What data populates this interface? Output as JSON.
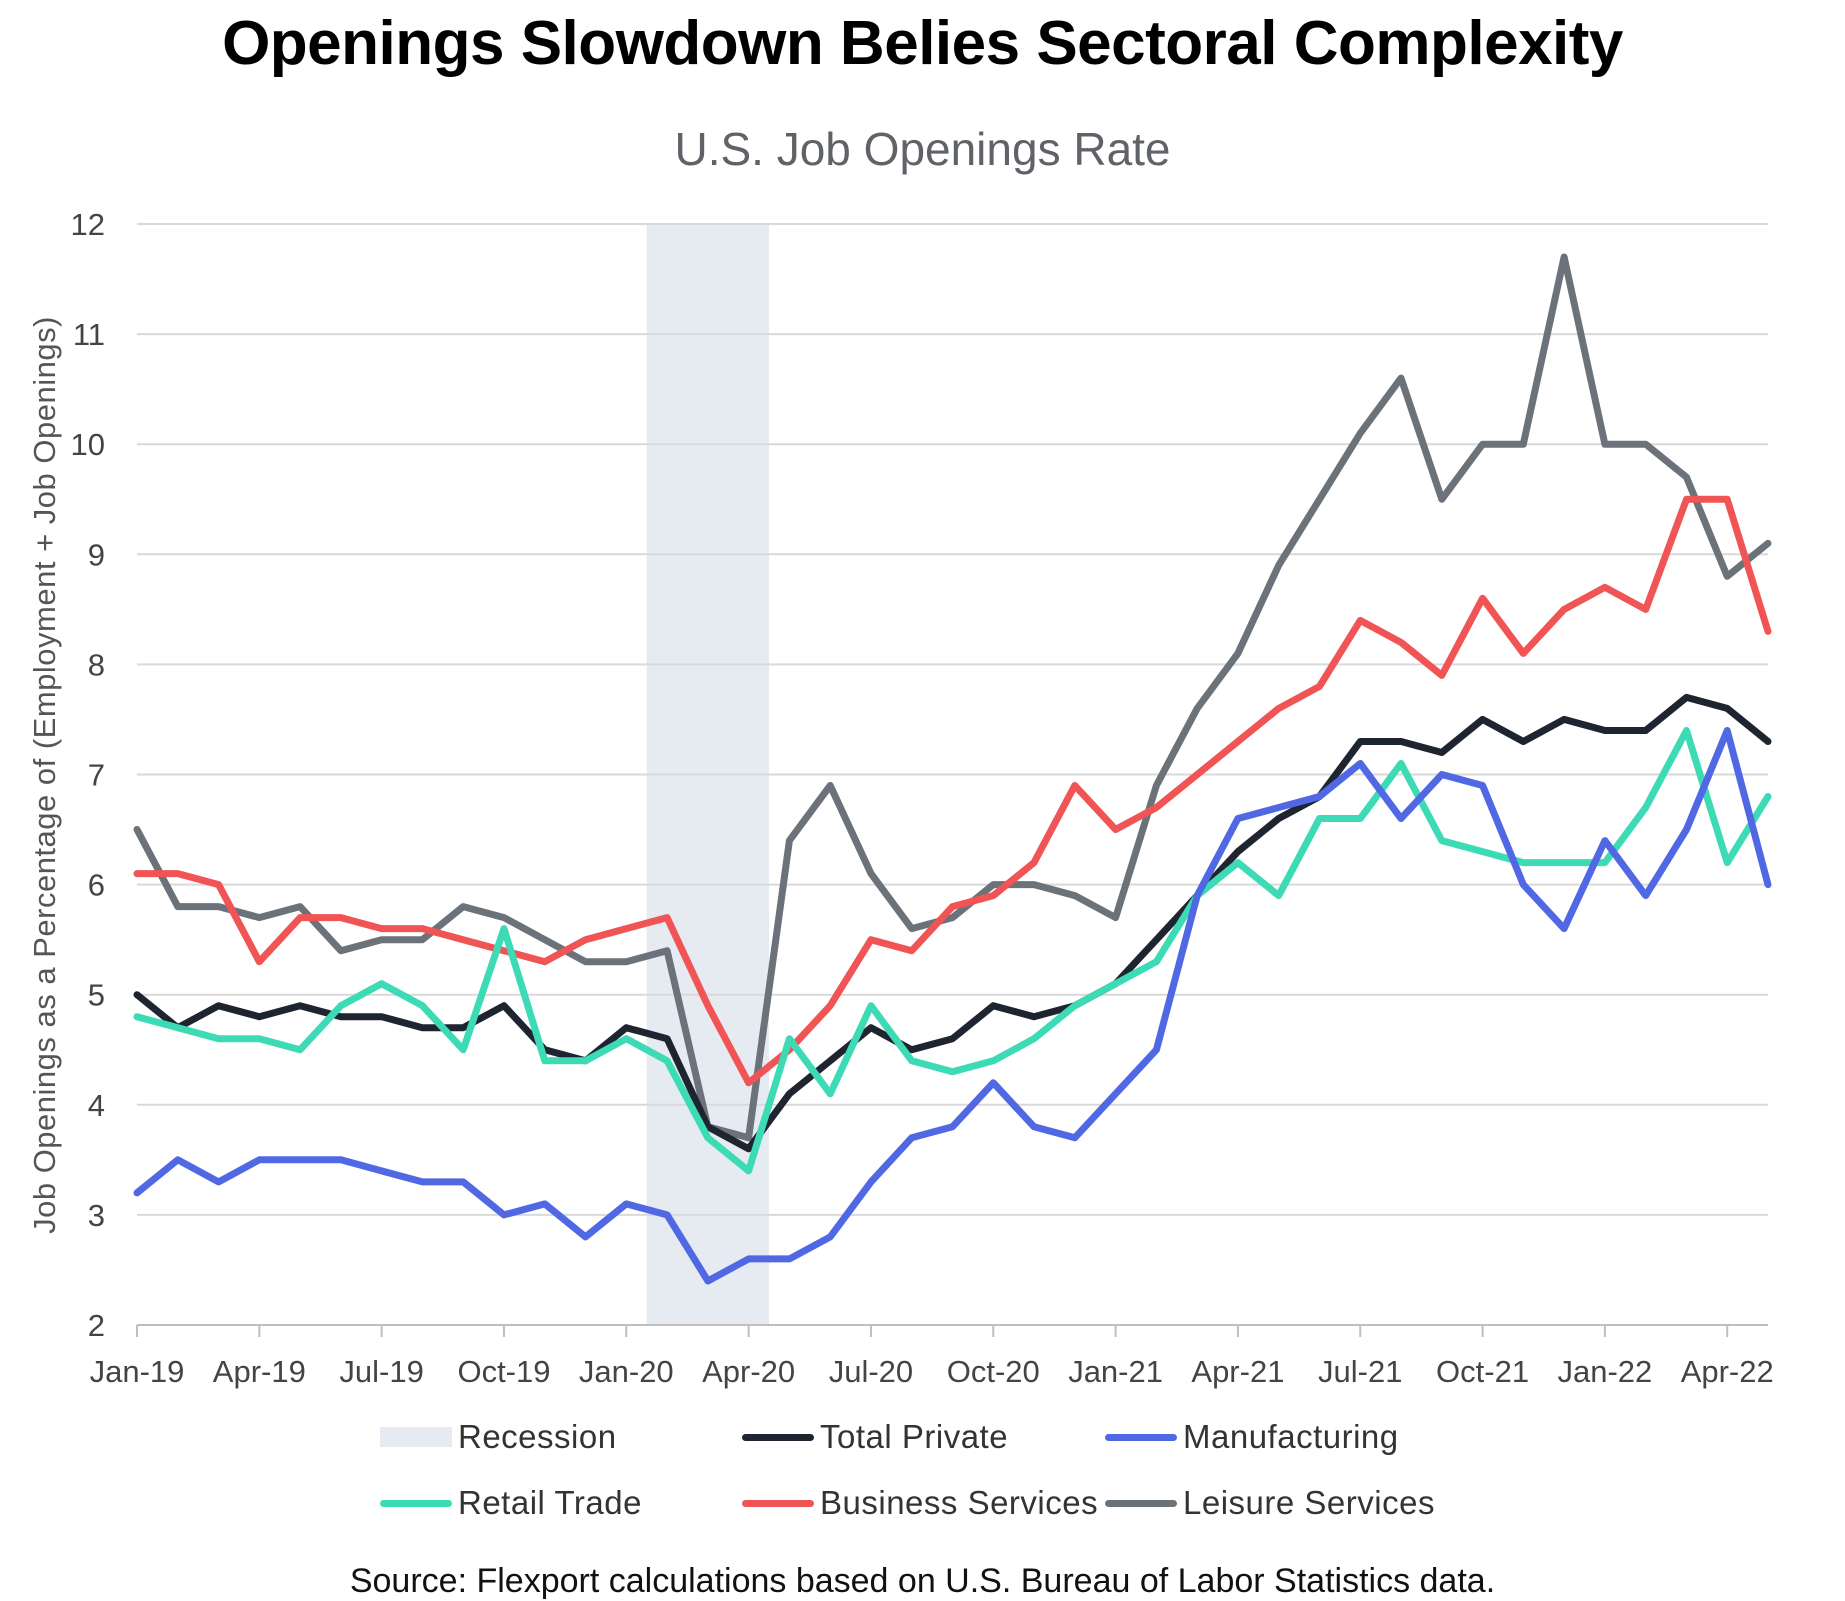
{
  "chart_data": {
    "type": "line",
    "title": "Openings Slowdown Belies Sectoral Complexity",
    "subtitle": "U.S. Job Openings Rate",
    "ylabel": "Job Openings as a Percentage of (Employment + Job Openings)",
    "xlabel": "",
    "ylim": [
      2,
      12
    ],
    "yticks": [
      "2",
      "3",
      "4",
      "5",
      "6",
      "7",
      "8",
      "9",
      "10",
      "11",
      "12"
    ],
    "x": [
      "Jan-19",
      "Feb-19",
      "Mar-19",
      "Apr-19",
      "May-19",
      "Jun-19",
      "Jul-19",
      "Aug-19",
      "Sep-19",
      "Oct-19",
      "Nov-19",
      "Dec-19",
      "Jan-20",
      "Feb-20",
      "Mar-20",
      "Apr-20",
      "May-20",
      "Jun-20",
      "Jul-20",
      "Aug-20",
      "Sep-20",
      "Oct-20",
      "Nov-20",
      "Dec-20",
      "Jan-21",
      "Feb-21",
      "Mar-21",
      "Apr-21",
      "May-21",
      "Jun-21",
      "Jul-21",
      "Aug-21",
      "Sep-21",
      "Oct-21",
      "Nov-21",
      "Dec-21",
      "Jan-22",
      "Feb-22",
      "Mar-22",
      "Apr-22",
      "May-22"
    ],
    "xtick_labels": [
      "Jan-19",
      "Apr-19",
      "Jul-19",
      "Oct-19",
      "Jan-20",
      "Apr-20",
      "Jul-20",
      "Oct-20",
      "Jan-21",
      "Apr-21",
      "Jul-21",
      "Oct-21",
      "Jan-22",
      "Apr-22"
    ],
    "recession": {
      "label": "Recession",
      "start": "Feb-20",
      "end": "Apr-20",
      "color": "#e6ebf2"
    },
    "series": [
      {
        "name": "Leisure Services",
        "color": "#6b727a",
        "values": [
          6.5,
          5.8,
          5.8,
          5.7,
          5.8,
          5.4,
          5.5,
          5.5,
          5.8,
          5.7,
          5.5,
          5.3,
          5.3,
          5.4,
          3.8,
          3.7,
          6.4,
          6.9,
          6.1,
          5.6,
          5.7,
          6.0,
          6.0,
          5.9,
          5.7,
          6.9,
          7.6,
          8.1,
          8.9,
          9.5,
          10.1,
          10.6,
          9.5,
          10.0,
          10.0,
          11.7,
          10.0,
          10.0,
          9.7,
          8.8,
          9.1
        ]
      },
      {
        "name": "Business Services",
        "color": "#f05454",
        "values": [
          6.1,
          6.1,
          6.0,
          5.3,
          5.7,
          5.7,
          5.6,
          5.6,
          5.5,
          5.4,
          5.3,
          5.5,
          5.6,
          5.7,
          4.9,
          4.2,
          4.5,
          4.9,
          5.5,
          5.4,
          5.8,
          5.9,
          6.2,
          6.9,
          6.5,
          6.7,
          7.0,
          7.3,
          7.6,
          7.8,
          8.4,
          8.2,
          7.9,
          8.6,
          8.1,
          8.5,
          8.7,
          8.5,
          9.5,
          9.5,
          8.3
        ]
      },
      {
        "name": "Total Private",
        "color": "#1e2430",
        "values": [
          5.0,
          4.7,
          4.9,
          4.8,
          4.9,
          4.8,
          4.8,
          4.7,
          4.7,
          4.9,
          4.5,
          4.4,
          4.7,
          4.6,
          3.8,
          3.6,
          4.1,
          4.4,
          4.7,
          4.5,
          4.6,
          4.9,
          4.8,
          4.9,
          5.1,
          5.5,
          5.9,
          6.3,
          6.6,
          6.8,
          7.3,
          7.3,
          7.2,
          7.5,
          7.3,
          7.5,
          7.4,
          7.4,
          7.7,
          7.6,
          7.3
        ]
      },
      {
        "name": "Retail Trade",
        "color": "#3ddbb5",
        "values": [
          4.8,
          4.7,
          4.6,
          4.6,
          4.5,
          4.9,
          5.1,
          4.9,
          4.5,
          5.6,
          4.4,
          4.4,
          4.6,
          4.4,
          3.7,
          3.4,
          4.6,
          4.1,
          4.9,
          4.4,
          4.3,
          4.4,
          4.6,
          4.9,
          5.1,
          5.3,
          5.9,
          6.2,
          5.9,
          6.6,
          6.6,
          7.1,
          6.4,
          6.3,
          6.2,
          6.2,
          6.2,
          6.7,
          7.4,
          6.2,
          6.8
        ]
      },
      {
        "name": "Manufacturing",
        "color": "#5068e3",
        "values": [
          3.2,
          3.5,
          3.3,
          3.5,
          3.5,
          3.5,
          3.4,
          3.3,
          3.3,
          3.0,
          3.1,
          2.8,
          3.1,
          3.0,
          2.4,
          2.6,
          2.6,
          2.8,
          3.3,
          3.7,
          3.8,
          4.2,
          3.8,
          3.7,
          4.1,
          4.5,
          5.9,
          6.6,
          6.7,
          6.8,
          7.1,
          6.6,
          7.0,
          6.9,
          6.0,
          5.6,
          6.4,
          5.9,
          6.5,
          7.4,
          6.0
        ]
      }
    ],
    "legend_order": [
      "Recession",
      "Total Private",
      "Manufacturing",
      "Retail Trade",
      "Business Services",
      "Leisure Services"
    ],
    "legend_placement": "bottom",
    "grid": true
  },
  "legend": {
    "recession": "Recession",
    "total_private": "Total Private",
    "manufacturing": "Manufacturing",
    "retail_trade": "Retail Trade",
    "business_services": "Business Services",
    "leisure_services": "Leisure Services"
  },
  "colors": {
    "recession": "#e6ebf2",
    "total_private": "#1e2430",
    "manufacturing": "#5068e3",
    "retail_trade": "#3ddbb5",
    "business_services": "#f05454",
    "leisure_services": "#6b727a"
  },
  "source": "Source: Flexport calculations based on U.S. Bureau of Labor Statistics data."
}
